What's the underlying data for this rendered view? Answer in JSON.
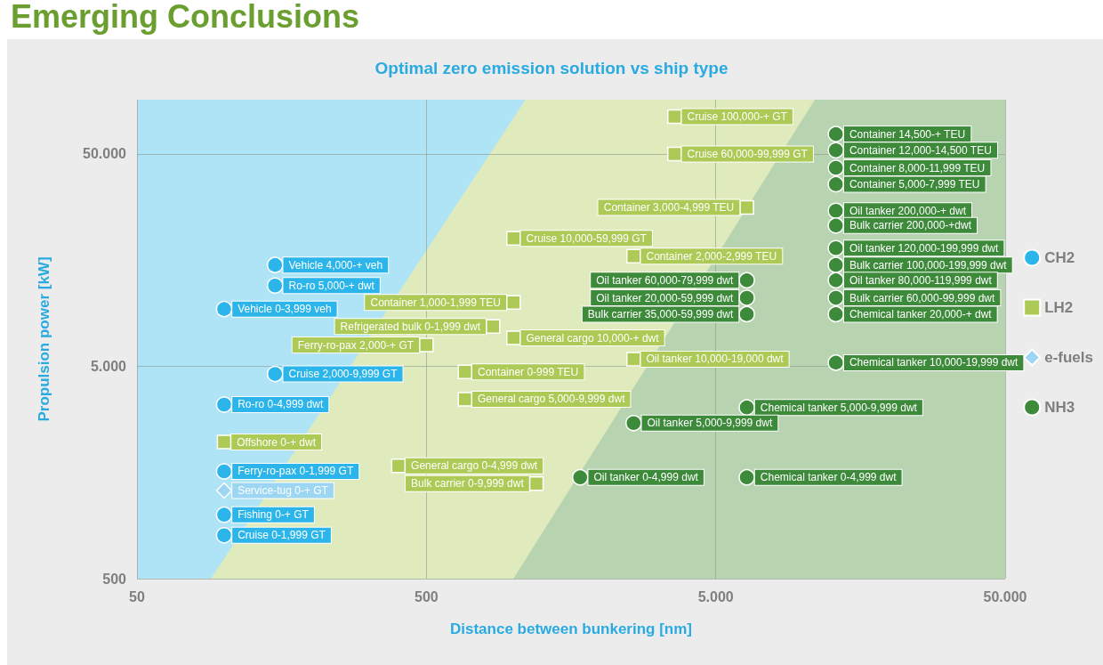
{
  "chart_data": {
    "type": "scatter",
    "title": "Optimal zero emission solution vs ship type",
    "xlabel": "Distance between bunkering [nm]",
    "ylabel": "Propulsion power [kW]",
    "annotations": [
      "Emerging Conclusions"
    ],
    "log": "xy",
    "grid": true,
    "legend": "right",
    "xlim": [
      50,
      50000
    ],
    "ylim": [
      500,
      90000
    ],
    "xticks": [
      50,
      500,
      {
        "value": 5000,
        "label": "5.000"
      },
      {
        "value": 50000,
        "label": "50.000"
      }
    ],
    "yticks": [
      500,
      {
        "value": 5000,
        "label": "5.000"
      },
      {
        "value": 50000,
        "label": "50.000"
      }
    ],
    "bands": [
      {
        "axis": "x",
        "from": 50,
        "to": 50000,
        "color": "#afe3f6"
      }
    ],
    "series": [
      {
        "type": "area",
        "color": "#dfeabd",
        "x": [
          90,
          1100,
          50000
        ],
        "values": [
          500,
          90000,
          90000
        ]
      },
      {
        "type": "area",
        "color": "#b7d3b0",
        "x": [
          1000,
          11000,
          50000
        ],
        "values": [
          500,
          90000,
          90000
        ]
      },
      {
        "name": "CH2",
        "color": "#2bb5ea",
        "marker": "circle",
        "x": [
          150,
          150,
          100,
          150,
          100,
          100,
          100,
          100
        ],
        "values": [
          15000,
          12000,
          9300,
          4600,
          3300,
          1600,
          1000,
          800
        ],
        "value_labels": [
          "Vehicle 4,000-+ veh",
          "Ro-ro 5,000-+ dwt",
          "Vehicle 0-3,999 veh",
          "Cruise 2,000-9,999 GT",
          "Ro-ro 0-4,999 dwt",
          "Ferry-ro-pax 0-1,999 GT",
          "Fishing 0-+ GT",
          "Cruise 0-1,999 GT"
        ]
      },
      {
        "name": "LH2",
        "color": "#adc956",
        "marker": "square",
        "x": [
          3600,
          3600,
          6400,
          1000,
          2600,
          1000,
          850,
          1000,
          500,
          2600,
          680,
          680,
          100,
          400,
          1200
        ],
        "values": [
          75000,
          50000,
          28000,
          20000,
          16500,
          10000,
          7700,
          6800,
          6300,
          5400,
          4700,
          3500,
          2200,
          1700,
          1400
        ],
        "value_labels": [
          "Cruise 100,000-+ GT",
          "Cruise 60,000-99,999 GT",
          "Container 3,000-4,999 TEU",
          "Cruise 10,000-59,999 GT",
          "Container 2,000-2,999 TEU",
          "Container 1,000-1,999 TEU",
          "Refrigerated bulk 0-1,999 dwt",
          "General cargo 10,000-+ dwt",
          "Ferry-ro-pax 2,000-+ GT",
          "Oil tanker 10,000-19,000 dwt",
          "Container 0-999 TEU",
          "General cargo 5,000-9,999 dwt",
          "Offshore 0-+ dwt",
          "General cargo 0-4,999 dwt",
          "Bulk carrier 0-9,999 dwt"
        ]
      },
      {
        "name": "e-fuels",
        "color": "#9dd6f3",
        "marker": "diamond",
        "x": [
          100
        ],
        "values": [
          1300
        ],
        "value_labels": [
          "Service-tug 0-+ GT"
        ]
      },
      {
        "name": "NH3",
        "color": "#3e8a3b",
        "marker": "circle",
        "x": [
          13000,
          13000,
          13000,
          13000,
          13000,
          13000,
          13000,
          13000,
          13000,
          13000,
          13000,
          6400,
          6400,
          6400,
          13000,
          6400,
          2600,
          1700,
          6400
        ],
        "values": [
          62000,
          52000,
          43000,
          36000,
          27000,
          23000,
          18000,
          15000,
          12700,
          10500,
          8800,
          12700,
          10500,
          8800,
          5200,
          3200,
          2700,
          1500,
          1500
        ],
        "value_labels": [
          "Container 14,500-+ TEU",
          "Container 12,000-14,500 TEU",
          "Container 8,000-11,999 TEU",
          "Container 5,000-7,999 TEU",
          "Oil tanker 200,000-+ dwt",
          "Bulk carrier 200,000-+dwt",
          "Oil tanker 120,000-199,999 dwt",
          "Bulk carrier 100,000-199,999 dwt",
          "Oil tanker 80,000-119,999 dwt",
          "Bulk carrier 60,000-99,999 dwt",
          "Chemical tanker 20,000-+ dwt",
          "Oil tanker 60,000-79,999 dwt",
          "Oil tanker 20,000-59,999 dwt",
          "Bulk carrier 35,000-59,999 dwt",
          "Chemical tanker 10,000-19,999 dwt",
          "Chemical tanker 5,000-9,999 dwt",
          "Oil tanker 5,000-9,999 dwt",
          "Oil tanker 0-4,999 dwt",
          "Chemical tanker 0-4,999 dwt"
        ]
      }
    ]
  }
}
